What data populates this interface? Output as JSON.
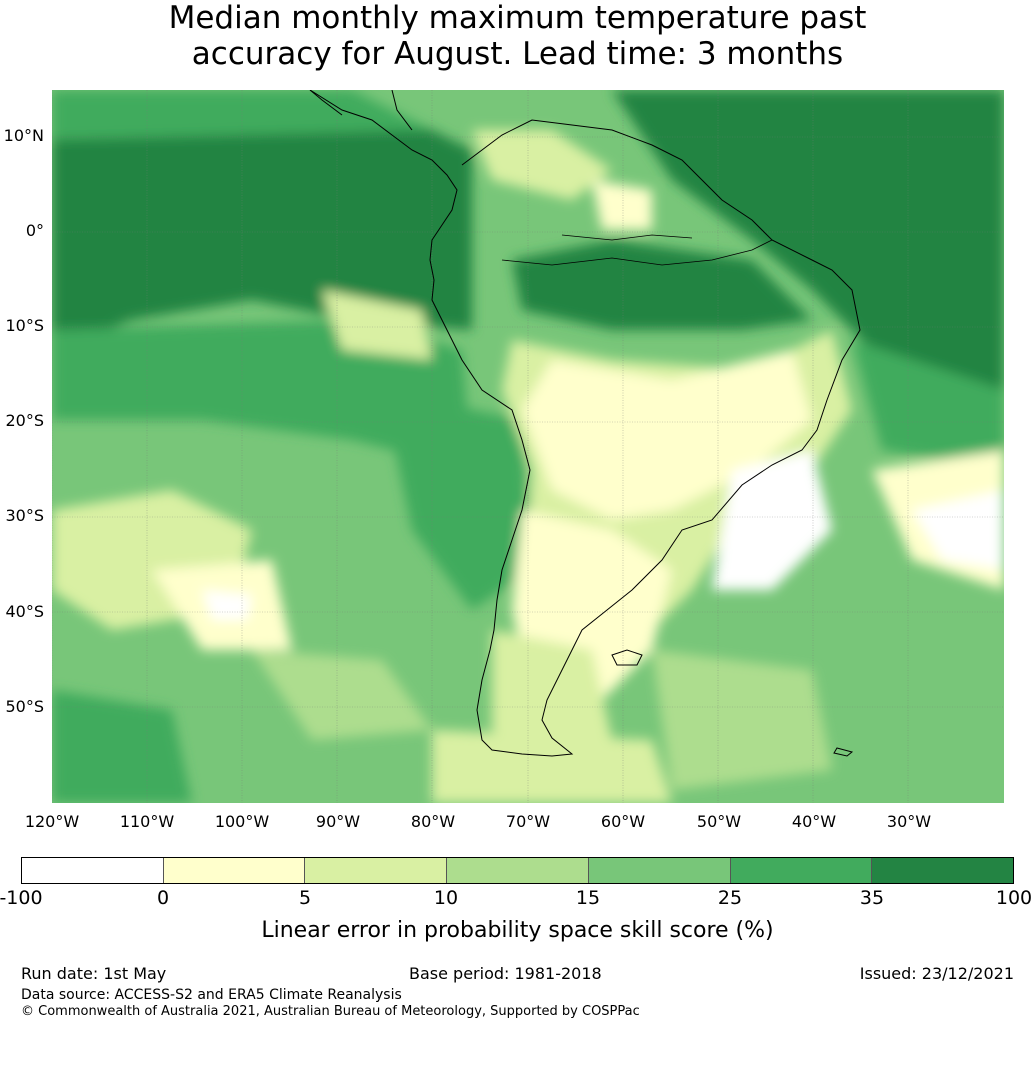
{
  "title_line1": "Median monthly maximum temperature past",
  "title_line2": "accuracy for August. Lead time: 3 months",
  "map": {
    "lat_labels": [
      "10°N",
      "0°",
      "10°S",
      "20°S",
      "30°S",
      "40°S",
      "50°S"
    ],
    "lon_labels": [
      "120°W",
      "110°W",
      "100°W",
      "90°W",
      "80°W",
      "70°W",
      "60°W",
      "50°W",
      "40°W",
      "30°W"
    ],
    "extent": {
      "lon_min": -125,
      "lon_max": -25,
      "lat_min": -60,
      "lat_max": 15
    }
  },
  "colorbar": {
    "ticks": [
      "-100",
      "0",
      "5",
      "10",
      "15",
      "25",
      "35",
      "100"
    ],
    "colors": [
      "#ffffff",
      "#ffffcc",
      "#d9f0a3",
      "#addd8e",
      "#78c679",
      "#41ab5d",
      "#238443"
    ],
    "label": "Linear error in probability space skill score (%)"
  },
  "footer": {
    "run_date": "Run date: 1st May",
    "base_period": "Base period: 1981-2018",
    "issued": "Issued: 23/12/2021",
    "data_source": "Data source: ACCESS-S2 and ERA5 Climate Reanalysis",
    "copyright": "© Commonwealth of Australia 2021, Australian Bureau of Meteorology, Supported by COSPPac"
  }
}
